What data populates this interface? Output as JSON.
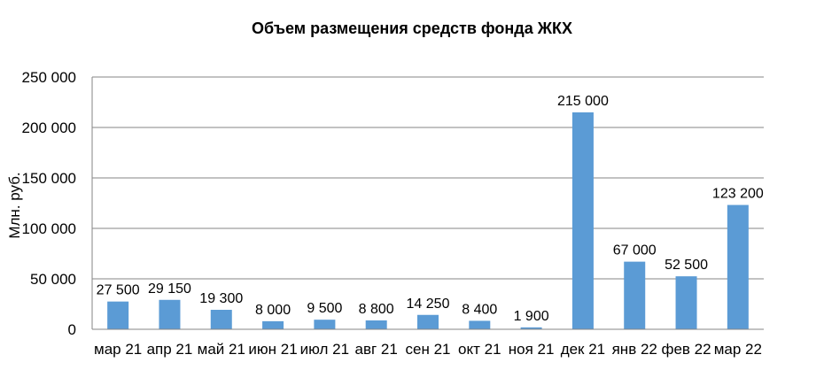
{
  "chart_data": {
    "type": "bar",
    "title": "Объем размещения средств фонда ЖКХ",
    "ylabel": "Млн. руб.",
    "xlabel": "",
    "categories": [
      "мар 21",
      "апр 21",
      "май 21",
      "июн 21",
      "июл 21",
      "авг 21",
      "сен 21",
      "окт 21",
      "ноя 21",
      "дек 21",
      "янв 22",
      "фев 22",
      "мар 22"
    ],
    "values": [
      27500,
      29150,
      19300,
      8000,
      9500,
      8800,
      14250,
      8400,
      1900,
      215000,
      67000,
      52500,
      123200
    ],
    "data_labels": [
      "27 500",
      "29 150",
      "19 300",
      "8 000",
      "9 500",
      "8 800",
      "14 250",
      "8 400",
      "1 900",
      "215 000",
      "67 000",
      "52 500",
      "123 200"
    ],
    "ylim": [
      0,
      250000
    ],
    "yticks": [
      0,
      50000,
      100000,
      150000,
      200000,
      250000
    ],
    "ytick_labels": [
      "0",
      "50 000",
      "100 000",
      "150 000",
      "200 000",
      "250 000"
    ],
    "grid": true,
    "legend": "none",
    "bar_color": "#5B9BD5"
  }
}
